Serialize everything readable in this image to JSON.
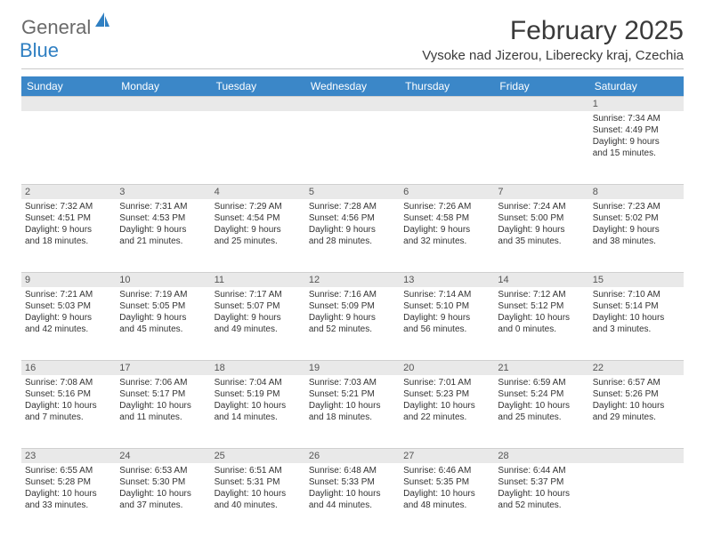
{
  "logo": {
    "word1": "General",
    "word2": "Blue"
  },
  "title": "February 2025",
  "location": "Vysoke nad Jizerou, Liberecky kraj, Czechia",
  "header_bg": "#3b87c8",
  "dayHeaders": [
    "Sunday",
    "Monday",
    "Tuesday",
    "Wednesday",
    "Thursday",
    "Friday",
    "Saturday"
  ],
  "weeks": [
    {
      "nums": [
        "",
        "",
        "",
        "",
        "",
        "",
        "1"
      ],
      "cells": [
        null,
        null,
        null,
        null,
        null,
        null,
        {
          "sunrise": "Sunrise: 7:34 AM",
          "sunset": "Sunset: 4:49 PM",
          "d1": "Daylight: 9 hours",
          "d2": "and 15 minutes."
        }
      ]
    },
    {
      "nums": [
        "2",
        "3",
        "4",
        "5",
        "6",
        "7",
        "8"
      ],
      "cells": [
        {
          "sunrise": "Sunrise: 7:32 AM",
          "sunset": "Sunset: 4:51 PM",
          "d1": "Daylight: 9 hours",
          "d2": "and 18 minutes."
        },
        {
          "sunrise": "Sunrise: 7:31 AM",
          "sunset": "Sunset: 4:53 PM",
          "d1": "Daylight: 9 hours",
          "d2": "and 21 minutes."
        },
        {
          "sunrise": "Sunrise: 7:29 AM",
          "sunset": "Sunset: 4:54 PM",
          "d1": "Daylight: 9 hours",
          "d2": "and 25 minutes."
        },
        {
          "sunrise": "Sunrise: 7:28 AM",
          "sunset": "Sunset: 4:56 PM",
          "d1": "Daylight: 9 hours",
          "d2": "and 28 minutes."
        },
        {
          "sunrise": "Sunrise: 7:26 AM",
          "sunset": "Sunset: 4:58 PM",
          "d1": "Daylight: 9 hours",
          "d2": "and 32 minutes."
        },
        {
          "sunrise": "Sunrise: 7:24 AM",
          "sunset": "Sunset: 5:00 PM",
          "d1": "Daylight: 9 hours",
          "d2": "and 35 minutes."
        },
        {
          "sunrise": "Sunrise: 7:23 AM",
          "sunset": "Sunset: 5:02 PM",
          "d1": "Daylight: 9 hours",
          "d2": "and 38 minutes."
        }
      ]
    },
    {
      "nums": [
        "9",
        "10",
        "11",
        "12",
        "13",
        "14",
        "15"
      ],
      "cells": [
        {
          "sunrise": "Sunrise: 7:21 AM",
          "sunset": "Sunset: 5:03 PM",
          "d1": "Daylight: 9 hours",
          "d2": "and 42 minutes."
        },
        {
          "sunrise": "Sunrise: 7:19 AM",
          "sunset": "Sunset: 5:05 PM",
          "d1": "Daylight: 9 hours",
          "d2": "and 45 minutes."
        },
        {
          "sunrise": "Sunrise: 7:17 AM",
          "sunset": "Sunset: 5:07 PM",
          "d1": "Daylight: 9 hours",
          "d2": "and 49 minutes."
        },
        {
          "sunrise": "Sunrise: 7:16 AM",
          "sunset": "Sunset: 5:09 PM",
          "d1": "Daylight: 9 hours",
          "d2": "and 52 minutes."
        },
        {
          "sunrise": "Sunrise: 7:14 AM",
          "sunset": "Sunset: 5:10 PM",
          "d1": "Daylight: 9 hours",
          "d2": "and 56 minutes."
        },
        {
          "sunrise": "Sunrise: 7:12 AM",
          "sunset": "Sunset: 5:12 PM",
          "d1": "Daylight: 10 hours",
          "d2": "and 0 minutes."
        },
        {
          "sunrise": "Sunrise: 7:10 AM",
          "sunset": "Sunset: 5:14 PM",
          "d1": "Daylight: 10 hours",
          "d2": "and 3 minutes."
        }
      ]
    },
    {
      "nums": [
        "16",
        "17",
        "18",
        "19",
        "20",
        "21",
        "22"
      ],
      "cells": [
        {
          "sunrise": "Sunrise: 7:08 AM",
          "sunset": "Sunset: 5:16 PM",
          "d1": "Daylight: 10 hours",
          "d2": "and 7 minutes."
        },
        {
          "sunrise": "Sunrise: 7:06 AM",
          "sunset": "Sunset: 5:17 PM",
          "d1": "Daylight: 10 hours",
          "d2": "and 11 minutes."
        },
        {
          "sunrise": "Sunrise: 7:04 AM",
          "sunset": "Sunset: 5:19 PM",
          "d1": "Daylight: 10 hours",
          "d2": "and 14 minutes."
        },
        {
          "sunrise": "Sunrise: 7:03 AM",
          "sunset": "Sunset: 5:21 PM",
          "d1": "Daylight: 10 hours",
          "d2": "and 18 minutes."
        },
        {
          "sunrise": "Sunrise: 7:01 AM",
          "sunset": "Sunset: 5:23 PM",
          "d1": "Daylight: 10 hours",
          "d2": "and 22 minutes."
        },
        {
          "sunrise": "Sunrise: 6:59 AM",
          "sunset": "Sunset: 5:24 PM",
          "d1": "Daylight: 10 hours",
          "d2": "and 25 minutes."
        },
        {
          "sunrise": "Sunrise: 6:57 AM",
          "sunset": "Sunset: 5:26 PM",
          "d1": "Daylight: 10 hours",
          "d2": "and 29 minutes."
        }
      ]
    },
    {
      "nums": [
        "23",
        "24",
        "25",
        "26",
        "27",
        "28",
        ""
      ],
      "cells": [
        {
          "sunrise": "Sunrise: 6:55 AM",
          "sunset": "Sunset: 5:28 PM",
          "d1": "Daylight: 10 hours",
          "d2": "and 33 minutes."
        },
        {
          "sunrise": "Sunrise: 6:53 AM",
          "sunset": "Sunset: 5:30 PM",
          "d1": "Daylight: 10 hours",
          "d2": "and 37 minutes."
        },
        {
          "sunrise": "Sunrise: 6:51 AM",
          "sunset": "Sunset: 5:31 PM",
          "d1": "Daylight: 10 hours",
          "d2": "and 40 minutes."
        },
        {
          "sunrise": "Sunrise: 6:48 AM",
          "sunset": "Sunset: 5:33 PM",
          "d1": "Daylight: 10 hours",
          "d2": "and 44 minutes."
        },
        {
          "sunrise": "Sunrise: 6:46 AM",
          "sunset": "Sunset: 5:35 PM",
          "d1": "Daylight: 10 hours",
          "d2": "and 48 minutes."
        },
        {
          "sunrise": "Sunrise: 6:44 AM",
          "sunset": "Sunset: 5:37 PM",
          "d1": "Daylight: 10 hours",
          "d2": "and 52 minutes."
        },
        null
      ]
    }
  ]
}
